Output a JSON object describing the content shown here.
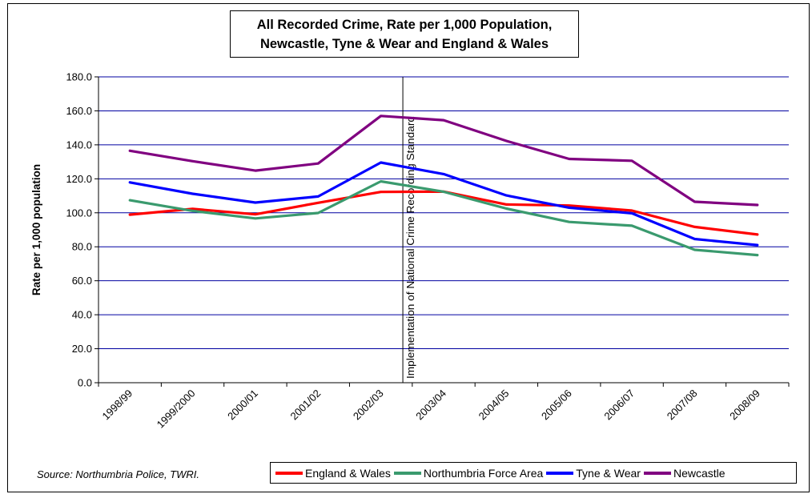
{
  "chart_data": {
    "type": "line",
    "title_lines": [
      "All Recorded Crime, Rate per 1,000 Population,",
      "Newcastle, Tyne & Wear and England & Wales"
    ],
    "xlabel": "",
    "ylabel": "Rate per 1,000 population",
    "ylim": [
      0,
      180
    ],
    "yticks": [
      "180.0",
      "160.0",
      "140.0",
      "120.0",
      "100.0",
      "80.0",
      "60.0",
      "40.0",
      "20.0",
      "0.0"
    ],
    "grid": true,
    "legend_position": "bottom-right",
    "categories": [
      "1998/99",
      "1999/2000",
      "2000/01",
      "2001/02",
      "2002/03",
      "2003/04",
      "2004/05",
      "2005/06",
      "2006/07",
      "2007/08",
      "2008/09"
    ],
    "series": [
      {
        "name": "England & Wales",
        "color": "#ff0000",
        "values": [
          98.9,
          102.3,
          99.1,
          105.9,
          112.3,
          112.5,
          104.9,
          104.3,
          101.3,
          91.7,
          87.2
        ]
      },
      {
        "name": "Northumbria Force Area",
        "color": "#3a9a6e",
        "values": [
          107.4,
          101.1,
          96.7,
          99.9,
          118.5,
          112.4,
          102.5,
          94.6,
          92.4,
          78.2,
          75.1
        ]
      },
      {
        "name": "Tyne & Wear",
        "color": "#0000ff",
        "values": [
          117.9,
          111.2,
          106.0,
          109.6,
          129.6,
          122.8,
          110.2,
          103.0,
          99.7,
          84.6,
          81.0
        ]
      },
      {
        "name": "Newcastle",
        "color": "#800080",
        "values": [
          136.5,
          130.4,
          124.8,
          129.0,
          157.0,
          154.5,
          142.3,
          131.7,
          130.6,
          106.5,
          104.6
        ]
      }
    ],
    "annotation": {
      "label": "Implementation of National Crime Recording Standard",
      "at_category": "2002/03"
    }
  },
  "source_note": "Source: Northumbria Police, TWRI."
}
